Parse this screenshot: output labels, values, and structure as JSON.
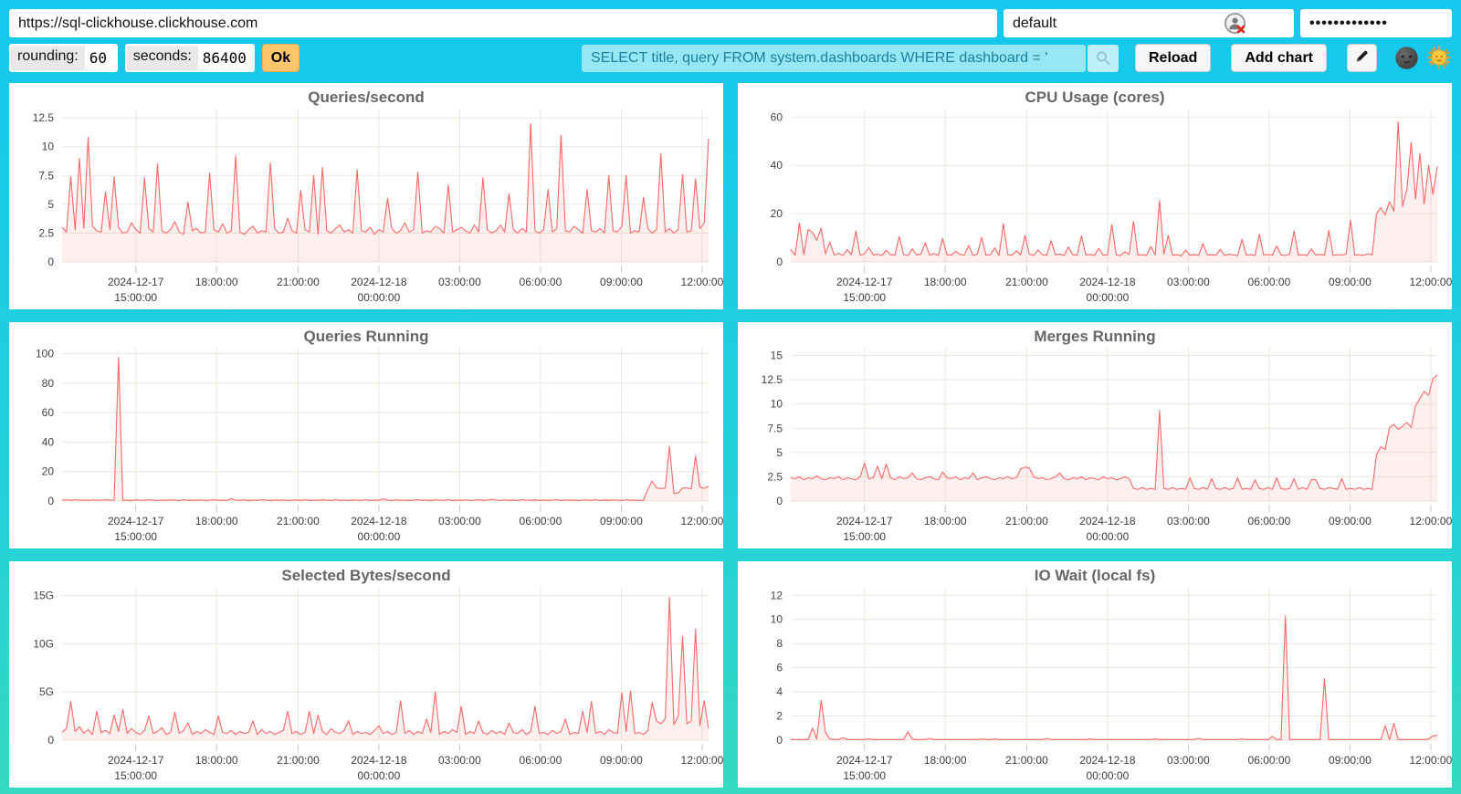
{
  "toolbar": {
    "url_value": "https://sql-clickhouse.clickhouse.com",
    "user_value": "default",
    "password_value": "•••••••••••••",
    "rounding_label": "rounding:",
    "rounding_value": "60",
    "seconds_label": "seconds:",
    "seconds_value": "86400",
    "ok_label": "Ok",
    "query_value": "SELECT title, query FROM system.dashboards WHERE dashboard = '",
    "reload_label": "Reload",
    "add_chart_label": "Add chart",
    "icons": {
      "user_avatar": "broken-user-avatar",
      "search": "magnifier",
      "edit": "pencil",
      "theme_dark": "new-moon-face",
      "theme_light": "sun-with-face"
    }
  },
  "colors": {
    "background_top": "#14c8ef",
    "background_bottom": "#35d9c0",
    "line": "#ff6666",
    "fill": "rgba(255,102,102,0.10)",
    "grid": "#e9e8dd",
    "tick": "#c9c9c3",
    "axis_text": "#444444",
    "title_text": "#666666",
    "ok_button": "#ffc66e",
    "query_text": "#1d7f9d"
  },
  "chart_data": {
    "type": "area",
    "legend_position": "none",
    "grid": true,
    "series_color": "#ff6666",
    "x_ticks": [
      {
        "pos": 0.114,
        "lines": [
          "2024-12-17",
          "15:00:00"
        ]
      },
      {
        "pos": 0.239,
        "lines": [
          "18:00:00"
        ]
      },
      {
        "pos": 0.365,
        "lines": [
          "21:00:00"
        ]
      },
      {
        "pos": 0.49,
        "lines": [
          "2024-12-18",
          "00:00:00"
        ]
      },
      {
        "pos": 0.615,
        "lines": [
          "03:00:00"
        ]
      },
      {
        "pos": 0.74,
        "lines": [
          "06:00:00"
        ]
      },
      {
        "pos": 0.865,
        "lines": [
          "09:00:00"
        ]
      },
      {
        "pos": 0.99,
        "lines": [
          "12:00:00"
        ]
      }
    ],
    "charts": [
      {
        "title": "Queries/second",
        "ymax": 13.3,
        "y_ticks": [
          {
            "v": 0,
            "l": "0"
          },
          {
            "v": 2.5,
            "l": "2.5"
          },
          {
            "v": 5,
            "l": "5"
          },
          {
            "v": 7.5,
            "l": "7.5"
          },
          {
            "v": 10,
            "l": "10"
          },
          {
            "v": 12.5,
            "l": "12.5"
          }
        ],
        "values": [
          3.0,
          2.6,
          7.4,
          2.8,
          9.0,
          2.9,
          10.8,
          3.1,
          2.7,
          2.6,
          6.1,
          2.8,
          7.4,
          3.0,
          2.5,
          2.6,
          3.4,
          2.8,
          2.5,
          7.3,
          2.9,
          2.6,
          8.5,
          2.7,
          2.5,
          2.8,
          3.5,
          2.6,
          2.4,
          5.2,
          2.7,
          2.9,
          2.5,
          2.6,
          7.7,
          2.8,
          2.6,
          3.3,
          2.5,
          2.7,
          9.2,
          2.6,
          2.4,
          2.8,
          3.1,
          2.5,
          2.7,
          2.6,
          8.6,
          2.9,
          2.5,
          2.6,
          3.8,
          2.7,
          2.5,
          6.2,
          2.8,
          2.6,
          7.5,
          2.4,
          8.2,
          2.7,
          2.5,
          2.9,
          3.2,
          2.6,
          2.8,
          2.5,
          8.0,
          2.7,
          2.6,
          3.0,
          2.4,
          2.8,
          2.6,
          5.5,
          2.9,
          2.5,
          2.7,
          3.4,
          2.6,
          2.8,
          7.8,
          2.5,
          2.7,
          2.6,
          3.1,
          2.9,
          2.5,
          6.7,
          2.6,
          2.8,
          3.0,
          2.7,
          2.5,
          3.2,
          2.6,
          7.3,
          2.8,
          2.5,
          2.7,
          3.2,
          2.6,
          5.9,
          2.8,
          2.5,
          2.9,
          2.6,
          12.0,
          2.7,
          2.5,
          2.8,
          6.3,
          2.6,
          2.9,
          11.0,
          2.7,
          2.6,
          3.1,
          2.8,
          2.5,
          6.3,
          2.7,
          2.6,
          2.9,
          2.5,
          7.5,
          2.7,
          2.6,
          3.1,
          7.5,
          2.5,
          2.7,
          2.6,
          5.6,
          2.9,
          2.5,
          2.8,
          9.4,
          2.6,
          2.9,
          2.5,
          2.8,
          7.6,
          2.6,
          2.7,
          7.2,
          2.9,
          3.4,
          10.7
        ]
      },
      {
        "title": "CPU Usage (cores)",
        "ymax": 63.5,
        "y_ticks": [
          {
            "v": 0,
            "l": "0"
          },
          {
            "v": 20,
            "l": "20"
          },
          {
            "v": 40,
            "l": "40"
          },
          {
            "v": 60,
            "l": "60"
          }
        ],
        "values": [
          5.2,
          2.8,
          16.1,
          3.0,
          13.5,
          12.2,
          9.0,
          14.0,
          3.4,
          8.2,
          2.9,
          3.6,
          2.7,
          5.1,
          3.0,
          12.8,
          2.8,
          3.4,
          6.0,
          2.9,
          3.2,
          2.7,
          4.8,
          3.0,
          2.8,
          10.5,
          3.1,
          2.6,
          5.4,
          2.9,
          3.3,
          7.9,
          2.8,
          3.5,
          2.7,
          9.8,
          3.0,
          2.8,
          4.4,
          3.1,
          2.9,
          6.8,
          2.7,
          3.2,
          10.2,
          2.8,
          3.0,
          5.8,
          2.7,
          15.8,
          3.1,
          2.8,
          4.6,
          2.9,
          11.0,
          3.2,
          2.7,
          5.0,
          3.0,
          2.8,
          8.8,
          2.9,
          3.3,
          2.7,
          6.2,
          3.0,
          2.8,
          10.8,
          2.9,
          3.1,
          2.7,
          5.6,
          2.8,
          3.0,
          15.5,
          2.9,
          2.6,
          4.2,
          3.1,
          16.8,
          2.8,
          3.0,
          2.7,
          6.4,
          2.9,
          25.5,
          3.2,
          11.0,
          2.8,
          3.0,
          2.6,
          4.9,
          2.8,
          3.1,
          2.7,
          7.6,
          2.9,
          3.0,
          2.8,
          5.2,
          2.7,
          3.2,
          2.9,
          2.6,
          9.4,
          2.8,
          3.0,
          2.7,
          11.5,
          2.9,
          3.1,
          2.8,
          6.6,
          2.9,
          2.7,
          3.2,
          12.8,
          2.8,
          3.0,
          2.7,
          5.4,
          2.9,
          3.1,
          2.8,
          13.0,
          2.7,
          3.0,
          2.9,
          3.3,
          17.3,
          2.8,
          3.0,
          2.7,
          3.4,
          2.9,
          20.0,
          22.5,
          19.5,
          25.0,
          21.0,
          58.0,
          23.0,
          30.0,
          49.5,
          26.0,
          45.0,
          24.0,
          40.0,
          28.0,
          39.5
        ]
      },
      {
        "title": "Queries Running",
        "ymax": 104,
        "y_ticks": [
          {
            "v": 0,
            "l": "0"
          },
          {
            "v": 20,
            "l": "20"
          },
          {
            "v": 40,
            "l": "40"
          },
          {
            "v": 60,
            "l": "60"
          },
          {
            "v": 80,
            "l": "80"
          },
          {
            "v": 100,
            "l": "100"
          }
        ],
        "values": [
          0.6,
          0.8,
          0.5,
          0.9,
          0.6,
          0.7,
          0.5,
          0.8,
          0.6,
          0.5,
          0.9,
          0.6,
          0.7,
          97.5,
          0.5,
          0.7,
          0.4,
          0.8,
          0.6,
          0.5,
          0.9,
          0.6,
          0.4,
          0.7,
          0.5,
          0.8,
          0.6,
          0.4,
          0.9,
          0.5,
          0.7,
          0.5,
          0.8,
          0.4,
          0.6,
          0.9,
          0.5,
          0.7,
          0.4,
          1.6,
          0.6,
          0.5,
          0.8,
          0.4,
          0.7,
          0.5,
          0.9,
          0.6,
          0.4,
          0.8,
          0.5,
          0.7,
          0.4,
          0.6,
          0.8,
          0.5,
          0.9,
          0.4,
          0.7,
          0.5,
          0.8,
          0.6,
          0.4,
          0.9,
          0.5,
          0.7,
          0.4,
          0.8,
          0.6,
          0.5,
          0.9,
          0.4,
          0.7,
          0.5,
          1.4,
          0.6,
          0.4,
          0.8,
          0.5,
          0.7,
          0.4,
          0.6,
          0.9,
          0.5,
          0.7,
          0.4,
          0.8,
          0.6,
          0.5,
          0.9,
          0.4,
          0.7,
          0.5,
          0.8,
          0.4,
          0.6,
          0.9,
          0.5,
          0.7,
          1.2,
          0.6,
          0.4,
          0.8,
          0.5,
          0.7,
          0.4,
          0.9,
          0.6,
          0.5,
          0.8,
          0.4,
          0.7,
          0.5,
          0.6,
          0.9,
          0.4,
          0.8,
          0.5,
          0.7,
          0.4,
          0.6,
          0.8,
          0.5,
          0.9,
          0.4,
          0.7,
          0.5,
          0.8,
          0.6,
          0.4,
          0.9,
          0.5,
          0.7,
          0.4,
          0.6,
          8.0,
          13.5,
          9.0,
          8.5,
          8.8,
          37.0,
          5.2,
          5.5,
          8.8,
          9.0,
          8.2,
          30.5,
          9.5,
          8.6,
          10.0
        ]
      },
      {
        "title": "Merges Running",
        "ymax": 15.8,
        "y_ticks": [
          {
            "v": 0,
            "l": "0"
          },
          {
            "v": 2.5,
            "l": "2.5"
          },
          {
            "v": 5,
            "l": "5"
          },
          {
            "v": 7.5,
            "l": "7.5"
          },
          {
            "v": 10,
            "l": "10"
          },
          {
            "v": 12.5,
            "l": "12.5"
          },
          {
            "v": 15,
            "l": "15"
          }
        ],
        "values": [
          2.4,
          2.3,
          2.5,
          2.2,
          2.4,
          2.3,
          2.6,
          2.3,
          2.2,
          2.4,
          2.3,
          2.5,
          2.2,
          2.4,
          2.3,
          2.2,
          2.5,
          3.9,
          2.3,
          2.4,
          3.6,
          2.3,
          3.8,
          2.4,
          2.2,
          2.5,
          2.3,
          2.4,
          2.9,
          2.3,
          2.2,
          2.4,
          2.5,
          2.3,
          2.2,
          3.0,
          2.4,
          2.3,
          2.5,
          2.2,
          2.4,
          2.3,
          2.9,
          2.2,
          2.4,
          2.5,
          2.3,
          2.2,
          2.4,
          2.3,
          2.5,
          2.3,
          2.4,
          3.3,
          3.5,
          3.4,
          2.5,
          2.3,
          2.4,
          2.2,
          2.3,
          2.5,
          2.9,
          2.3,
          2.2,
          2.4,
          2.3,
          2.5,
          2.2,
          2.4,
          2.3,
          2.2,
          2.5,
          2.3,
          2.4,
          2.2,
          2.3,
          2.5,
          2.3,
          1.3,
          1.2,
          1.4,
          1.2,
          1.3,
          1.2,
          9.3,
          1.3,
          1.2,
          1.4,
          1.2,
          1.3,
          1.2,
          2.4,
          1.3,
          1.2,
          1.4,
          1.2,
          2.3,
          1.3,
          1.2,
          1.4,
          1.2,
          1.3,
          2.4,
          1.2,
          1.3,
          1.2,
          2.2,
          1.3,
          1.2,
          1.4,
          1.2,
          2.4,
          1.3,
          1.2,
          1.3,
          2.3,
          1.2,
          1.4,
          1.2,
          2.2,
          2.2,
          1.3,
          1.2,
          1.4,
          1.3,
          1.2,
          2.3,
          1.2,
          1.3,
          1.2,
          1.4,
          1.2,
          1.3,
          1.2,
          4.8,
          5.6,
          5.3,
          7.6,
          7.9,
          7.4,
          7.7,
          8.1,
          7.6,
          9.8,
          10.6,
          11.3,
          10.9,
          12.6,
          13.0
        ]
      },
      {
        "title": "Selected Bytes/second",
        "unit": "G",
        "ymax": 15.9,
        "y_ticks": [
          {
            "v": 0,
            "l": "0"
          },
          {
            "v": 5,
            "l": "5G"
          },
          {
            "v": 10,
            "l": "10G"
          },
          {
            "v": 15,
            "l": "15G"
          }
        ],
        "values": [
          0.8,
          1.2,
          4.0,
          0.9,
          1.4,
          0.7,
          1.1,
          0.6,
          3.0,
          0.8,
          1.0,
          0.7,
          2.6,
          0.9,
          3.2,
          0.7,
          1.2,
          0.8,
          0.6,
          1.0,
          2.5,
          0.7,
          0.9,
          1.3,
          0.6,
          0.8,
          2.9,
          0.7,
          1.0,
          1.8,
          0.6,
          0.9,
          0.7,
          1.1,
          0.8,
          0.6,
          2.5,
          0.8,
          0.7,
          1.0,
          0.6,
          0.9,
          0.7,
          0.8,
          2.0,
          0.6,
          1.1,
          0.7,
          0.9,
          0.6,
          0.8,
          1.0,
          3.0,
          0.7,
          0.9,
          0.6,
          0.8,
          3.0,
          0.7,
          2.6,
          0.9,
          0.6,
          1.2,
          0.8,
          0.7,
          1.0,
          2.0,
          0.6,
          0.9,
          0.7,
          0.8,
          0.6,
          1.0,
          1.5,
          0.7,
          0.9,
          0.6,
          0.8,
          4.1,
          0.7,
          1.0,
          0.6,
          0.9,
          0.7,
          2.2,
          0.8,
          5.0,
          0.6,
          0.9,
          0.7,
          1.1,
          0.8,
          3.5,
          0.6,
          0.9,
          0.7,
          2.0,
          0.8,
          0.6,
          1.0,
          0.7,
          0.9,
          0.6,
          1.8,
          0.8,
          0.7,
          1.1,
          0.6,
          0.9,
          3.5,
          0.7,
          0.8,
          0.6,
          1.0,
          0.7,
          0.9,
          2.2,
          0.6,
          0.8,
          0.7,
          3.0,
          0.8,
          4.0,
          0.7,
          0.9,
          0.6,
          1.1,
          0.8,
          0.7,
          4.9,
          0.9,
          5.1,
          0.7,
          0.8,
          0.6,
          1.0,
          3.9,
          2.0,
          1.7,
          2.2,
          14.8,
          1.6,
          2.5,
          10.8,
          1.7,
          2.0,
          11.5,
          1.5,
          4.1,
          1.2
        ]
      },
      {
        "title": "IO Wait (local fs)",
        "ymax": 12.7,
        "y_ticks": [
          {
            "v": 0,
            "l": "0"
          },
          {
            "v": 2,
            "l": "2"
          },
          {
            "v": 4,
            "l": "4"
          },
          {
            "v": 6,
            "l": "6"
          },
          {
            "v": 8,
            "l": "8"
          },
          {
            "v": 10,
            "l": "10"
          },
          {
            "v": 12,
            "l": "12"
          }
        ],
        "values": [
          0.05,
          0.05,
          0.05,
          0.05,
          0.05,
          1.0,
          0.1,
          3.3,
          0.65,
          0.1,
          0.05,
          0.05,
          0.2,
          0.05,
          0.05,
          0.05,
          0.05,
          0.05,
          0.1,
          0.05,
          0.05,
          0.05,
          0.05,
          0.05,
          0.05,
          0.05,
          0.05,
          0.7,
          0.1,
          0.05,
          0.05,
          0.05,
          0.15,
          0.05,
          0.05,
          0.05,
          0.05,
          0.05,
          0.05,
          0.05,
          0.05,
          0.05,
          0.05,
          0.05,
          0.1,
          0.05,
          0.05,
          0.1,
          0.05,
          0.05,
          0.05,
          0.05,
          0.05,
          0.05,
          0.05,
          0.05,
          0.05,
          0.05,
          0.05,
          0.15,
          0.05,
          0.05,
          0.05,
          0.05,
          0.05,
          0.05,
          0.05,
          0.05,
          0.05,
          0.1,
          0.05,
          0.05,
          0.05,
          0.05,
          0.05,
          0.05,
          0.05,
          0.05,
          0.05,
          0.05,
          0.05,
          0.05,
          0.05,
          0.05,
          0.1,
          0.05,
          0.05,
          0.05,
          0.05,
          0.05,
          0.05,
          0.05,
          0.05,
          0.05,
          0.15,
          0.05,
          0.05,
          0.05,
          0.05,
          0.05,
          0.05,
          0.05,
          0.05,
          0.05,
          0.1,
          0.05,
          0.05,
          0.05,
          0.05,
          0.05,
          0.05,
          0.3,
          0.05,
          0.05,
          10.3,
          0.05,
          0.05,
          0.05,
          0.05,
          0.05,
          0.05,
          0.05,
          0.05,
          5.1,
          0.05,
          0.05,
          0.05,
          0.05,
          0.05,
          0.05,
          0.05,
          0.05,
          0.05,
          0.05,
          0.05,
          0.05,
          0.05,
          1.2,
          0.05,
          1.4,
          0.05,
          0.05,
          0.05,
          0.05,
          0.05,
          0.05,
          0.05,
          0.1,
          0.35,
          0.4
        ]
      }
    ]
  }
}
